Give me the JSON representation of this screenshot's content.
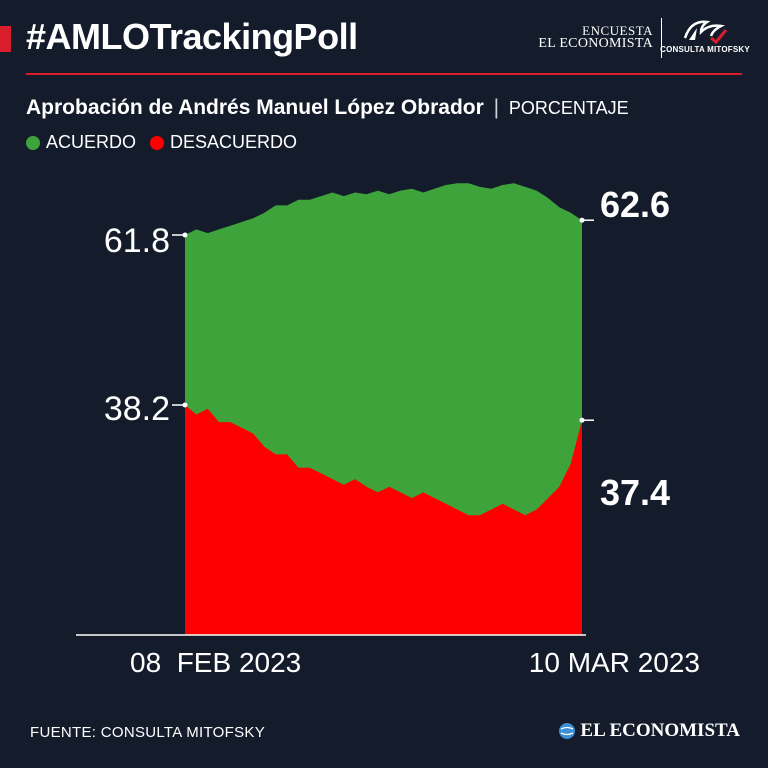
{
  "header": {
    "hashtag": "#AMLOTrackingPoll",
    "brand_line1": "ENCUESTA",
    "brand_line2": "EL ECONOMISTA",
    "partner_logo_text": "CONSULTA MITOFSKY"
  },
  "subtitle": {
    "main": "Aprobación de Andrés Manuel López Obrador",
    "separator": "|",
    "unit": "PORCENTAJE"
  },
  "legend": [
    {
      "label": "ACUERDO",
      "color": "#3ea33a"
    },
    {
      "label": "DESACUERDO",
      "color": "#ff0000"
    }
  ],
  "chart_data": {
    "type": "area",
    "stacked": true,
    "x_labels": [
      "08  FEB 2023",
      "10 MAR 2023"
    ],
    "ylim": [
      0,
      100
    ],
    "series": [
      {
        "name": "ACUERDO",
        "color": "#3ea33a",
        "values": [
          61.8,
          62.1,
          61.9,
          62.1,
          62.3,
          62.5,
          62.7,
          63.0,
          63.4,
          63.4,
          63.7,
          63.7,
          63.9,
          64.1,
          63.9,
          64.1,
          64.0,
          64.2,
          64.0,
          64.2,
          64.3,
          64.1,
          64.3,
          64.5,
          64.6,
          64.6,
          64.4,
          64.3,
          64.5,
          64.6,
          64.4,
          64.2,
          63.8,
          63.3,
          63.0,
          62.6
        ]
      },
      {
        "name": "DESACUERDO",
        "color": "#ff0000",
        "values": [
          38.2,
          37.7,
          38.0,
          37.3,
          37.3,
          37.0,
          36.7,
          36.0,
          35.6,
          35.6,
          34.9,
          34.9,
          34.6,
          34.3,
          34.0,
          34.3,
          33.9,
          33.6,
          33.9,
          33.6,
          33.3,
          33.6,
          33.3,
          33.0,
          32.7,
          32.4,
          32.4,
          32.7,
          33.0,
          32.7,
          32.4,
          32.7,
          33.3,
          33.9,
          35.1,
          37.4
        ]
      }
    ],
    "start_labels": {
      "acuerdo": "61.8",
      "desacuerdo": "38.2"
    },
    "end_labels": {
      "acuerdo": "62.6",
      "desacuerdo": "37.4"
    }
  },
  "footer": {
    "source": "FUENTE: CONSULTA MITOFSKY",
    "brand": "EL ECONOMISTA"
  }
}
